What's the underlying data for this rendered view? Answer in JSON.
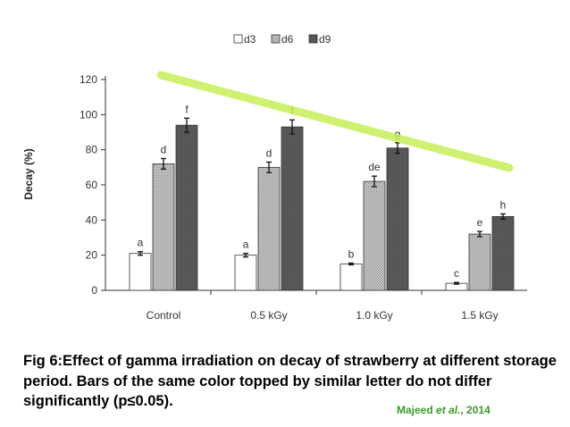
{
  "chart_data": {
    "type": "bar",
    "title": "",
    "xlabel": "",
    "ylabel": "Decay (%)",
    "ylim": [
      0,
      120
    ],
    "yticks": [
      0,
      20,
      40,
      60,
      80,
      100,
      120
    ],
    "grid": false,
    "legend_position": "top",
    "categories": [
      "Control",
      "0.5 kGy",
      "1.0 kGy",
      "1.5 kGy"
    ],
    "series": [
      {
        "name": "d3",
        "values": [
          21,
          20,
          15,
          4
        ],
        "errors": [
          1,
          1,
          0.5,
          0.5
        ],
        "letters": [
          "a",
          "a",
          "b",
          "c"
        ],
        "fill": "#ffffff"
      },
      {
        "name": "d6",
        "values": [
          72,
          70,
          62,
          32
        ],
        "errors": [
          3,
          3,
          3,
          1.5
        ],
        "letters": [
          "d",
          "d",
          "de",
          "e"
        ],
        "fill": "#b8b8b8"
      },
      {
        "name": "d9",
        "values": [
          94,
          93,
          81,
          42
        ],
        "errors": [
          4,
          4,
          3,
          1.5
        ],
        "letters": [
          "f",
          "f",
          "g",
          "h"
        ],
        "fill": "#555555"
      }
    ],
    "trend_line": {
      "color": "#c6ef57"
    }
  },
  "caption": "Fig 6:Effect of gamma irradiation on decay of strawberry at different storage period. Bars of the same color topped by similar letter do not differ significantly (p≤0.05).",
  "citation": {
    "author": "Majeed ",
    "etal": "et al.",
    "year": ", 2014"
  }
}
